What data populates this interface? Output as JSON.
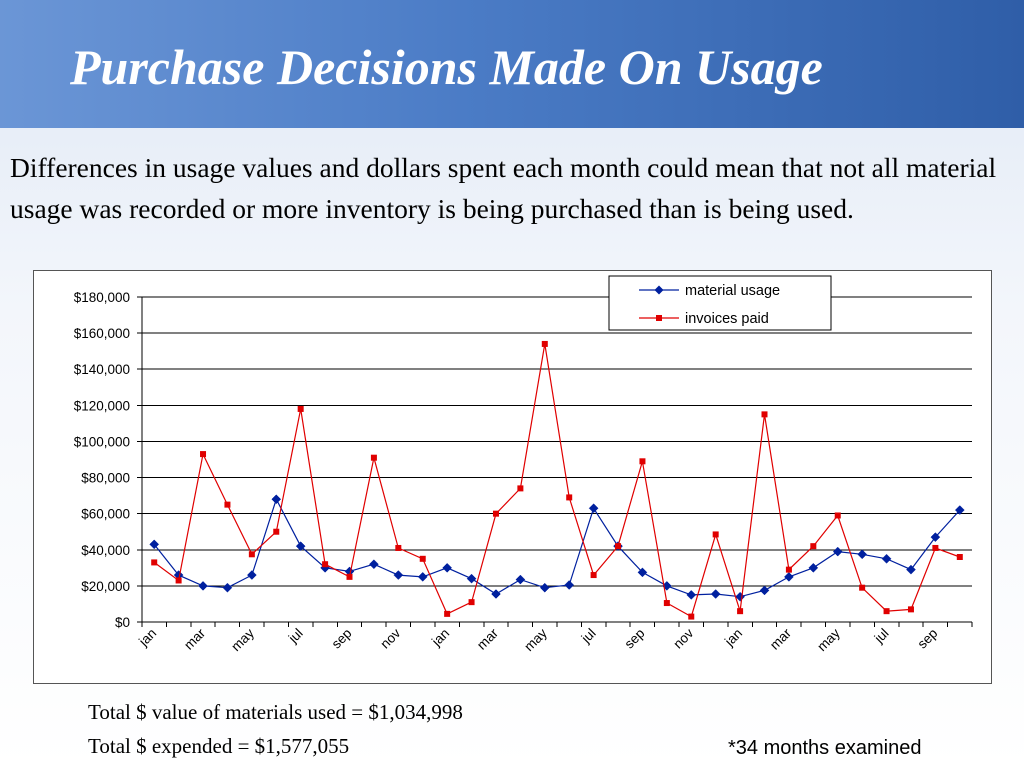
{
  "slide": {
    "title": "Purchase Decisions Made On Usage",
    "body": "Differences in usage values and dollars spent each month could mean that not all material usage was recorded or more inventory is being purchased than is being used.",
    "total_used": "Total $ value of materials used = $1,034,998",
    "total_expended": "Total $ expended = $1,577,055",
    "footnote": "*34 months examined"
  },
  "colors": {
    "material_usage": "#00209f",
    "invoices_paid": "#e00000",
    "title_text": "#ffffff"
  },
  "chart_data": {
    "type": "line",
    "ylim": [
      0,
      180000
    ],
    "y_ticks": [
      "$0",
      "$20,000",
      "$40,000",
      "$60,000",
      "$80,000",
      "$100,000",
      "$120,000",
      "$140,000",
      "$160,000",
      "$180,000"
    ],
    "x_tick_labels": [
      "jan",
      "mar",
      "may",
      "jul",
      "sep",
      "nov",
      "jan",
      "mar",
      "may",
      "jul",
      "sep",
      "nov",
      "jan",
      "mar",
      "may",
      "jul",
      "sep"
    ],
    "categories": [
      "jan",
      "feb",
      "mar",
      "apr",
      "may",
      "jun",
      "jul",
      "aug",
      "sep",
      "oct",
      "nov",
      "dec",
      "jan",
      "feb",
      "mar",
      "apr",
      "may",
      "jun",
      "jul",
      "aug",
      "sep",
      "oct",
      "nov",
      "dec",
      "jan",
      "feb",
      "mar",
      "apr",
      "may",
      "jun",
      "jul",
      "aug",
      "sep",
      "oct"
    ],
    "legend_position": "top-right",
    "grid": true,
    "series": [
      {
        "name": "material usage",
        "marker": "diamond",
        "values": [
          43000,
          26000,
          20000,
          19000,
          26000,
          68000,
          42000,
          30000,
          28000,
          32000,
          26000,
          25000,
          30000,
          24000,
          15500,
          23500,
          19000,
          20500,
          63000,
          42000,
          27500,
          20000,
          15000,
          15500,
          14000,
          17500,
          25000,
          30000,
          39000,
          37500,
          35000,
          29000,
          47000,
          62000
        ]
      },
      {
        "name": "invoices paid",
        "marker": "square",
        "values": [
          33000,
          23000,
          93000,
          65000,
          37500,
          50000,
          118000,
          32000,
          25000,
          91000,
          41000,
          35000,
          4500,
          11000,
          60000,
          74000,
          154000,
          69000,
          26000,
          42000,
          89000,
          10500,
          3000,
          48500,
          6000,
          115000,
          29000,
          42000,
          59000,
          19000,
          6000,
          7000,
          41000,
          36000
        ]
      }
    ]
  }
}
